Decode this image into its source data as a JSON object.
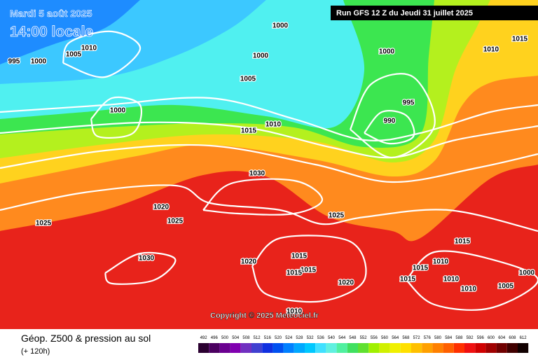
{
  "header": {
    "date": "Mardi 5 août 2025",
    "time": "14:00 locale",
    "run": "Run GFS 12 Z du Jeudi 31 juillet 2025"
  },
  "isobar_labels": [
    "995",
    "1000",
    "1005",
    "1010",
    "1000",
    "1000",
    "1000",
    "1005",
    "1015",
    "1010",
    "1000",
    "995",
    "990",
    "1010",
    "1015",
    "1030",
    "1020",
    "1025",
    "1025",
    "1025",
    "1030",
    "1020",
    "1015",
    "1015",
    "1015",
    "1020",
    "1015",
    "1015",
    "1010",
    "1015",
    "1010",
    "1010",
    "1005",
    "1000",
    "1010"
  ],
  "copyright": "Copyright © 2025 Meteociel.fr",
  "footer": {
    "title": "Géop. Z500 & pression au sol",
    "lead": "(+ 120h)"
  },
  "scale": {
    "values": [
      492,
      496,
      500,
      504,
      508,
      512,
      516,
      520,
      524,
      528,
      532,
      536,
      540,
      544,
      548,
      552,
      556,
      560,
      564,
      568,
      572,
      576,
      580,
      584,
      588,
      592,
      596,
      600,
      604,
      608,
      612
    ],
    "colors": [
      "#2a0030",
      "#4b0060",
      "#6a0090",
      "#8000b0",
      "#7030c0",
      "#4040d0",
      "#1030e0",
      "#0050f0",
      "#0080ff",
      "#00a8ff",
      "#00c8ff",
      "#40e0ff",
      "#60f0e0",
      "#50f0a0",
      "#40e060",
      "#60e030",
      "#a0f000",
      "#d0f000",
      "#f0f000",
      "#ffe000",
      "#ffc000",
      "#ffa000",
      "#ff8000",
      "#ff6000",
      "#ff3000",
      "#f01010",
      "#d00000",
      "#a00000",
      "#700000",
      "#400000",
      "#100000"
    ]
  }
}
